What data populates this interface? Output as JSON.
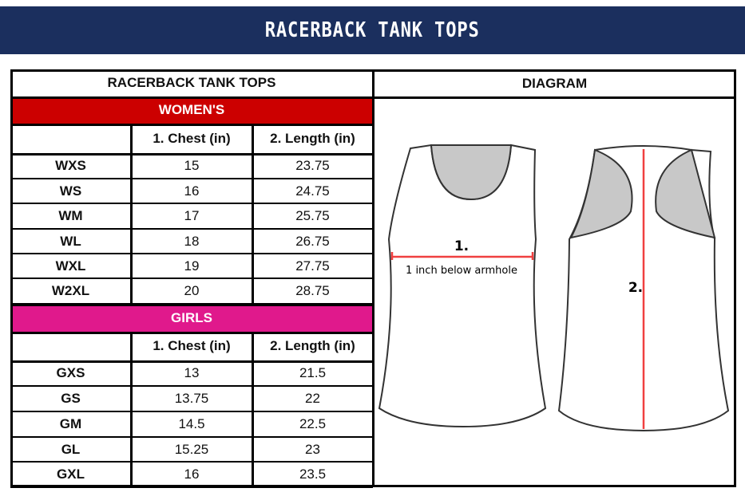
{
  "banner": {
    "title": "RACERBACK TANK TOPS"
  },
  "table": {
    "title": "RACERBACK TANK TOPS",
    "diagram_header": "DIAGRAM",
    "columns": [
      "",
      "1. Chest (in)",
      "2. Length (in)"
    ],
    "sections": [
      {
        "name": "WOMEN'S",
        "color": "#cc0000",
        "rows": [
          [
            "WXS",
            "15",
            "23.75"
          ],
          [
            "WS",
            "16",
            "24.75"
          ],
          [
            "WM",
            "17",
            "25.75"
          ],
          [
            "WL",
            "18",
            "26.75"
          ],
          [
            "WXL",
            "19",
            "27.75"
          ],
          [
            "W2XL",
            "20",
            "28.75"
          ]
        ]
      },
      {
        "name": "GIRLS",
        "color": "#e0198c",
        "rows": [
          [
            "GXS",
            "13",
            "21.5"
          ],
          [
            "GS",
            "13.75",
            "22"
          ],
          [
            "GM",
            "14.5",
            "22.5"
          ],
          [
            "GL",
            "15.25",
            "23"
          ],
          [
            "GXL",
            "16",
            "23.5"
          ]
        ]
      }
    ]
  },
  "diagram": {
    "chest_label": "1.",
    "chest_note": "1 inch below armhole",
    "length_label": "2.",
    "measure_color": "#f04040"
  }
}
